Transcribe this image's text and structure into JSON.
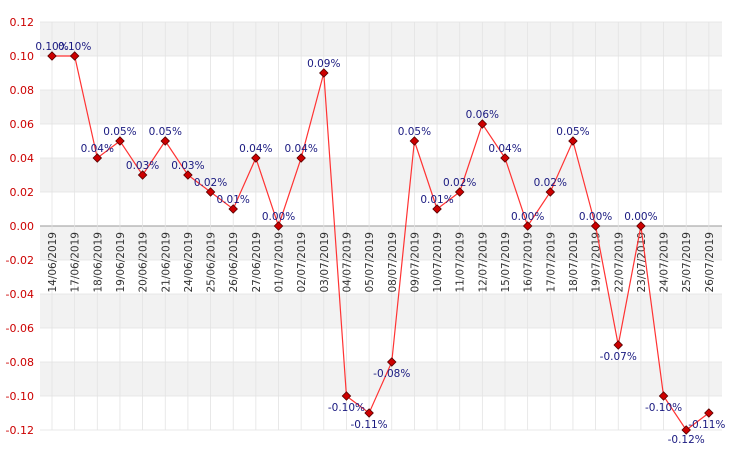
{
  "chart_data": {
    "type": "line",
    "title": "",
    "xlabel": "",
    "ylabel": "",
    "ylim": [
      -0.12,
      0.12
    ],
    "yticks": [
      "0.12",
      "0.10",
      "0.08",
      "0.06",
      "0.04",
      "0.02",
      "0.00",
      "-0.02",
      "-0.04",
      "-0.06",
      "-0.08",
      "-0.10",
      "-0.12"
    ],
    "ytick_values": [
      0.12,
      0.1,
      0.08,
      0.06,
      0.04,
      0.02,
      0.0,
      -0.02,
      -0.04,
      -0.06,
      -0.08,
      -0.1,
      -0.12
    ],
    "grid": true,
    "categories": [
      "14/06/2019",
      "17/06/2019",
      "18/06/2019",
      "19/06/2019",
      "20/06/2019",
      "21/06/2019",
      "24/06/2019",
      "25/06/2019",
      "26/06/2019",
      "27/06/2019",
      "01/07/2019",
      "02/07/2019",
      "03/07/2019",
      "04/07/2019",
      "05/07/2019",
      "08/07/2019",
      "09/07/2019",
      "10/07/2019",
      "11/07/2019",
      "12/07/2019",
      "15/07/2019",
      "16/07/2019",
      "17/07/2019",
      "18/07/2019",
      "19/07/2019",
      "22/07/2019",
      "23/07/2019",
      "24/07/2019",
      "25/07/2019",
      "26/07/2019"
    ],
    "values": [
      0.1,
      0.1,
      0.04,
      0.05,
      0.03,
      0.05,
      0.03,
      0.02,
      0.01,
      0.04,
      0.0,
      0.04,
      0.09,
      -0.1,
      -0.11,
      -0.08,
      0.05,
      0.01,
      0.02,
      0.06,
      0.04,
      0.0,
      0.02,
      0.05,
      0.0,
      -0.07,
      0.0,
      -0.1,
      -0.12,
      -0.11
    ],
    "data_labels": [
      "0.10%",
      "0.10%",
      "0.04%",
      "0.05%",
      "0.03%",
      "0.05%",
      "0.03%",
      "0.02%",
      "0.01%",
      "0.04%",
      "0.00%",
      "0.04%",
      "0.09%",
      "-0.10%",
      "-0.11%",
      "-0.08%",
      "0.05%",
      "0.01%",
      "0.02%",
      "0.06%",
      "0.04%",
      "0.00%",
      "0.02%",
      "0.05%",
      "0.00%",
      "-0.07%",
      "0.00%",
      "-0.10%",
      "-0.12%",
      "-0.11%"
    ],
    "colors": {
      "line": "#ff3333",
      "marker_fill": "#cc0000",
      "marker_stroke": "#550000",
      "band": "#f2f2f2",
      "grid": "#e3e3e3",
      "zero_line": "#999999",
      "ytick_text": "#cc0000",
      "xtick_text": "#333333",
      "label_text": "#1a1a80"
    }
  }
}
